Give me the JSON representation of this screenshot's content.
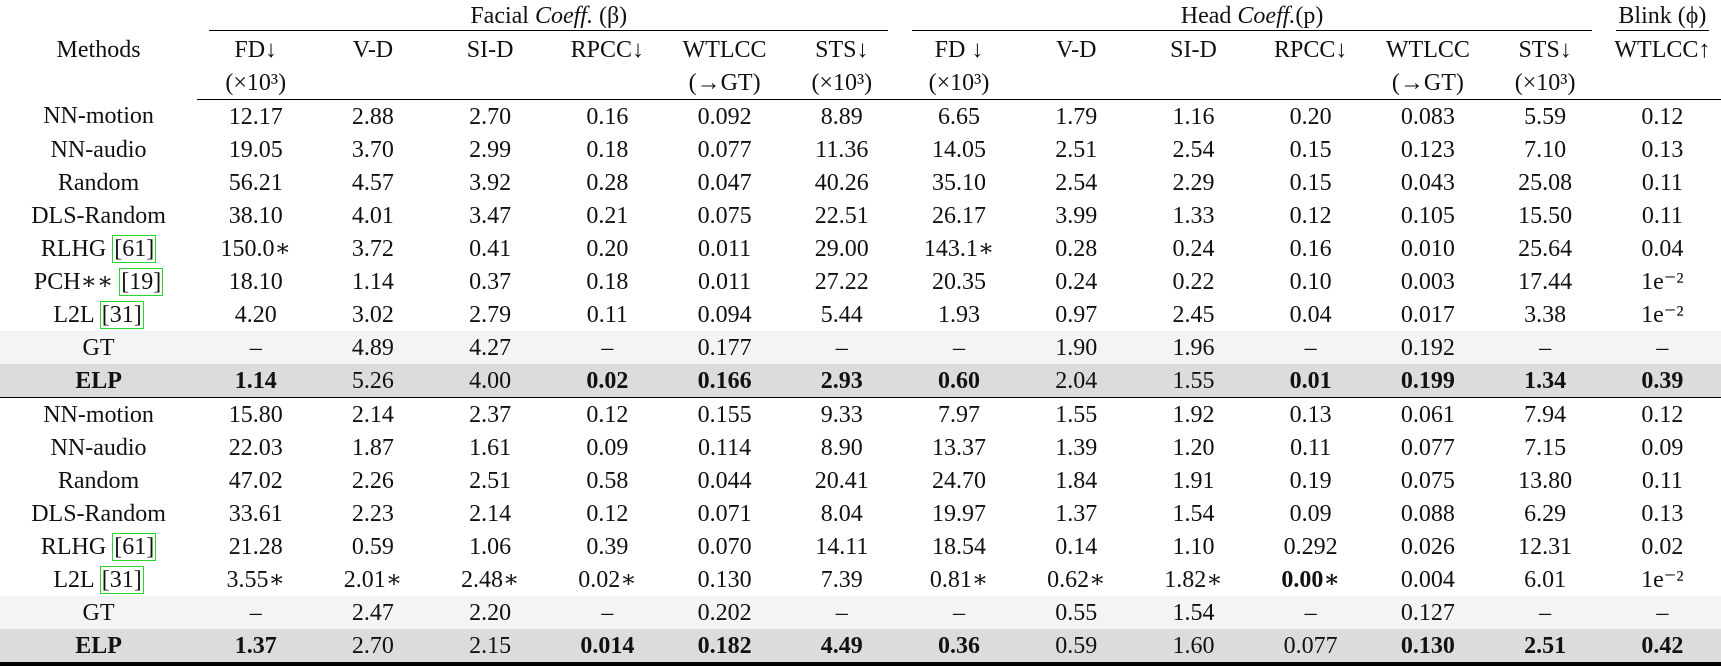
{
  "header": {
    "methods_label": "Methods",
    "groups": [
      {
        "parts": [
          "Facial",
          "Coeff.",
          "(β)"
        ],
        "columns": [
          [
            "FD↓",
            "(×10³)"
          ],
          [
            "V-D"
          ],
          [
            "SI-D"
          ],
          [
            "RPCC↓"
          ],
          [
            "WTLCC",
            "(→GT)"
          ],
          [
            "STS↓",
            "(×10³)"
          ]
        ]
      },
      {
        "parts": [
          "Head",
          "Coeff.",
          "(p)"
        ],
        "columns": [
          [
            "FD ↓",
            "(×10³)"
          ],
          [
            "V-D"
          ],
          [
            "SI-D"
          ],
          [
            "RPCC↓"
          ],
          [
            "WTLCC",
            "(→GT)"
          ],
          [
            "STS↓",
            "(×10³)"
          ]
        ]
      },
      {
        "parts": [
          "Blink (ϕ)"
        ],
        "columns": [
          [
            "WTLCC↑"
          ]
        ]
      }
    ]
  },
  "sections": [
    {
      "rows": [
        {
          "method": "NN-motion",
          "cells": [
            "12.17",
            "2.88",
            "2.70",
            "0.16",
            "0.092",
            "8.89",
            "6.65",
            "1.79",
            "1.16",
            "0.20",
            "0.083",
            "5.59",
            "0.12"
          ]
        },
        {
          "method": "NN-audio",
          "cells": [
            "19.05",
            "3.70",
            "2.99",
            "0.18",
            "0.077",
            "11.36",
            "14.05",
            "2.51",
            "2.54",
            "0.15",
            "0.123",
            "7.10",
            "0.13"
          ]
        },
        {
          "method": "Random",
          "cells": [
            "56.21",
            "4.57",
            "3.92",
            "0.28",
            "0.047",
            "40.26",
            "35.10",
            "2.54",
            "2.29",
            "0.15",
            "0.043",
            "25.08",
            "0.11"
          ]
        },
        {
          "method": "DLS-Random",
          "cells": [
            "38.10",
            "4.01",
            "3.47",
            "0.21",
            "0.075",
            "22.51",
            "26.17",
            "3.99",
            "1.33",
            "0.12",
            "0.105",
            "15.50",
            "0.11"
          ]
        },
        {
          "method": "RLHG",
          "cite": "[61]",
          "cells": [
            "150.0∗",
            "3.72",
            "0.41",
            "0.20",
            "0.011",
            "29.00",
            "143.1∗",
            "0.28",
            "0.24",
            "0.16",
            "0.010",
            "25.64",
            "0.04"
          ]
        },
        {
          "method": "PCH∗∗",
          "cite": "[19]",
          "cells": [
            "18.10",
            "1.14",
            "0.37",
            "0.18",
            "0.011",
            "27.22",
            "20.35",
            "0.24",
            "0.22",
            "0.10",
            "0.003",
            "17.44",
            "1e⁻²"
          ]
        },
        {
          "method": "L2L",
          "cite": "[31]",
          "cells": [
            "4.20",
            "3.02",
            "2.79",
            "0.11",
            "0.094",
            "5.44",
            "1.93",
            "0.97",
            "2.45",
            "0.04",
            "0.017",
            "3.38",
            "1e⁻²"
          ]
        },
        {
          "method": "GT",
          "shade": "light",
          "cells": [
            "–",
            "4.89",
            "4.27",
            "–",
            "0.177",
            "–",
            "–",
            "1.90",
            "1.96",
            "–",
            "0.192",
            "–",
            "–"
          ]
        },
        {
          "method": "ELP",
          "shade": "dark",
          "method_bold": true,
          "bold": [
            0,
            3,
            4,
            5,
            6,
            9,
            10,
            11,
            12
          ],
          "cells": [
            "1.14",
            "5.26",
            "4.00",
            "0.02",
            "0.166",
            "2.93",
            "0.60",
            "2.04",
            "1.55",
            "0.01",
            "0.199",
            "1.34",
            "0.39"
          ]
        }
      ]
    },
    {
      "rows": [
        {
          "method": "NN-motion",
          "cells": [
            "15.80",
            "2.14",
            "2.37",
            "0.12",
            "0.155",
            "9.33",
            "7.97",
            "1.55",
            "1.92",
            "0.13",
            "0.061",
            "7.94",
            "0.12"
          ]
        },
        {
          "method": "NN-audio",
          "cells": [
            "22.03",
            "1.87",
            "1.61",
            "0.09",
            "0.114",
            "8.90",
            "13.37",
            "1.39",
            "1.20",
            "0.11",
            "0.077",
            "7.15",
            "0.09"
          ]
        },
        {
          "method": "Random",
          "cells": [
            "47.02",
            "2.26",
            "2.51",
            "0.58",
            "0.044",
            "20.41",
            "24.70",
            "1.84",
            "1.91",
            "0.19",
            "0.075",
            "13.80",
            "0.11"
          ]
        },
        {
          "method": "DLS-Random",
          "cells": [
            "33.61",
            "2.23",
            "2.14",
            "0.12",
            "0.071",
            "8.04",
            "19.97",
            "1.37",
            "1.54",
            "0.09",
            "0.088",
            "6.29",
            "0.13"
          ]
        },
        {
          "method": "RLHG",
          "cite": "[61]",
          "cells": [
            "21.28",
            "0.59",
            "1.06",
            "0.39",
            "0.070",
            "14.11",
            "18.54",
            "0.14",
            "1.10",
            "0.292",
            "0.026",
            "12.31",
            "0.02"
          ]
        },
        {
          "method": "L2L",
          "cite": "[31]",
          "bold": [
            9
          ],
          "cells": [
            "3.55∗",
            "2.01∗",
            "2.48∗",
            "0.02∗",
            "0.130",
            "7.39",
            "0.81∗",
            "0.62∗",
            "1.82∗",
            "0.00∗",
            "0.004",
            "6.01",
            "1e⁻²"
          ]
        },
        {
          "method": "GT",
          "shade": "light",
          "cells": [
            "–",
            "2.47",
            "2.20",
            "–",
            "0.202",
            "–",
            "–",
            "0.55",
            "1.54",
            "–",
            "0.127",
            "–",
            "–"
          ]
        },
        {
          "method": "ELP",
          "shade": "dark",
          "method_bold": true,
          "bold": [
            0,
            3,
            4,
            5,
            6,
            10,
            11,
            12
          ],
          "cells": [
            "1.37",
            "2.70",
            "2.15",
            "0.014",
            "0.182",
            "4.49",
            "0.36",
            "0.59",
            "1.60",
            "0.077",
            "0.130",
            "2.51",
            "0.42"
          ]
        }
      ]
    }
  ]
}
